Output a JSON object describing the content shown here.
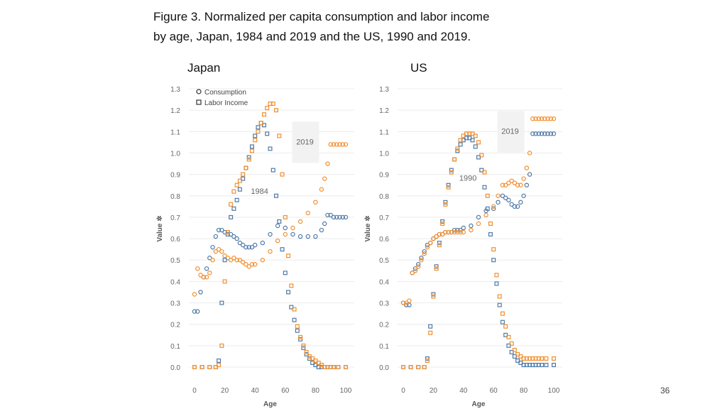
{
  "title_line1": "Figure 3.  Normalized per capita consumption and labor income",
  "title_line2": "by age, Japan, 1984 and 2019 and the US, 1990 and 2019.",
  "page_number": "36",
  "colors": {
    "year_early": "#4e79a7",
    "year_late": "#f28e2b"
  },
  "chart_data": [
    {
      "type": "scatter",
      "panel_title": "Japan",
      "xlabel": "Age",
      "ylabel": "Value",
      "xlim": [
        0,
        100
      ],
      "ylim": [
        0,
        1.3
      ],
      "xticks": [
        "0",
        "20",
        "40",
        "60",
        "80",
        "100"
      ],
      "yticks": [
        "0.0",
        "0.1",
        "0.2",
        "0.3",
        "0.4",
        "0.5",
        "0.6",
        "0.7",
        "0.8",
        "0.9",
        "1.0",
        "1.1",
        "1.2",
        "1.3"
      ],
      "legend": [
        {
          "marker": "circle",
          "label": "Consumption"
        },
        {
          "marker": "square",
          "label": "Labor Income"
        }
      ],
      "annotations": [
        {
          "text": "1984",
          "x": 43,
          "y": 0.81
        },
        {
          "text": "2019",
          "x": 73,
          "y": 1.04
        }
      ],
      "series": [
        {
          "name": "Consumption 1984",
          "year": "1984",
          "marker": "circle",
          "x": [
            0,
            2,
            4,
            6,
            8,
            10,
            12,
            14,
            16,
            18,
            20,
            22,
            24,
            26,
            28,
            30,
            32,
            34,
            36,
            38,
            40,
            45,
            50,
            55,
            60,
            65,
            70,
            75,
            80,
            84,
            86,
            88,
            90,
            92,
            94,
            96,
            98,
            100
          ],
          "y": [
            0.26,
            0.26,
            0.35,
            0.42,
            0.46,
            0.51,
            0.56,
            0.61,
            0.64,
            0.64,
            0.63,
            0.63,
            0.62,
            0.61,
            0.6,
            0.58,
            0.57,
            0.56,
            0.56,
            0.56,
            0.57,
            0.58,
            0.62,
            0.66,
            0.65,
            0.62,
            0.61,
            0.61,
            0.61,
            0.64,
            0.67,
            0.71,
            0.71,
            0.7,
            0.7,
            0.7,
            0.7,
            0.7
          ]
        },
        {
          "name": "Consumption 2019",
          "year": "2019",
          "marker": "circle",
          "x": [
            0,
            2,
            4,
            6,
            8,
            10,
            12,
            14,
            16,
            18,
            20,
            22,
            24,
            26,
            28,
            30,
            32,
            34,
            36,
            38,
            40,
            45,
            50,
            55,
            60,
            65,
            70,
            75,
            80,
            84,
            86,
            88,
            90,
            92,
            94,
            96,
            98,
            100
          ],
          "y": [
            0.34,
            0.46,
            0.43,
            0.42,
            0.42,
            0.44,
            0.5,
            0.54,
            0.55,
            0.54,
            0.52,
            0.51,
            0.5,
            0.51,
            0.5,
            0.5,
            0.49,
            0.48,
            0.47,
            0.48,
            0.48,
            0.5,
            0.54,
            0.59,
            0.62,
            0.65,
            0.68,
            0.72,
            0.77,
            0.83,
            0.88,
            0.95,
            1.04,
            1.04,
            1.04,
            1.04,
            1.04,
            1.04
          ]
        },
        {
          "name": "Labor Income 1984",
          "year": "1984",
          "marker": "square",
          "x": [
            0,
            5,
            10,
            14,
            16,
            18,
            20,
            22,
            24,
            26,
            28,
            30,
            32,
            34,
            36,
            38,
            40,
            42,
            44,
            46,
            48,
            50,
            52,
            54,
            56,
            58,
            60,
            62,
            64,
            66,
            68,
            70,
            72,
            74,
            76,
            78,
            80,
            82,
            84,
            86,
            88,
            90,
            92,
            95,
            100
          ],
          "y": [
            0.0,
            0.0,
            0.0,
            0.0,
            0.03,
            0.3,
            0.5,
            0.62,
            0.7,
            0.74,
            0.78,
            0.83,
            0.88,
            0.93,
            0.98,
            1.03,
            1.08,
            1.12,
            1.14,
            1.13,
            1.09,
            1.02,
            0.92,
            0.8,
            0.68,
            0.55,
            0.44,
            0.35,
            0.28,
            0.22,
            0.17,
            0.13,
            0.09,
            0.06,
            0.04,
            0.02,
            0.01,
            0.0,
            0.0,
            0.0,
            0.0,
            0.0,
            0.0,
            0.0,
            0.0
          ]
        },
        {
          "name": "Labor Income 2019",
          "year": "2019",
          "marker": "square",
          "x": [
            0,
            5,
            10,
            14,
            16,
            18,
            20,
            22,
            24,
            26,
            28,
            30,
            32,
            34,
            36,
            38,
            40,
            42,
            44,
            46,
            48,
            50,
            52,
            54,
            56,
            58,
            60,
            62,
            64,
            66,
            68,
            70,
            72,
            74,
            76,
            78,
            80,
            82,
            84,
            86,
            88,
            90,
            92,
            95,
            100
          ],
          "y": [
            0.0,
            0.0,
            0.0,
            0.0,
            0.01,
            0.1,
            0.4,
            0.63,
            0.76,
            0.82,
            0.85,
            0.87,
            0.9,
            0.93,
            0.97,
            1.01,
            1.06,
            1.1,
            1.14,
            1.18,
            1.21,
            1.23,
            1.23,
            1.2,
            1.08,
            0.9,
            0.7,
            0.52,
            0.38,
            0.27,
            0.19,
            0.14,
            0.1,
            0.07,
            0.05,
            0.04,
            0.03,
            0.02,
            0.01,
            0.0,
            0.0,
            0.0,
            0.0,
            0.0,
            0.0
          ]
        }
      ]
    },
    {
      "type": "scatter",
      "panel_title": "US",
      "xlabel": "Age",
      "ylabel": "Value",
      "xlim": [
        0,
        100
      ],
      "ylim": [
        0,
        1.3
      ],
      "xticks": [
        "0",
        "20",
        "40",
        "60",
        "80",
        "100"
      ],
      "yticks": [
        "0.0",
        "0.1",
        "0.2",
        "0.3",
        "0.4",
        "0.5",
        "0.6",
        "0.7",
        "0.8",
        "0.9",
        "1.0",
        "1.1",
        "1.2",
        "1.3"
      ],
      "annotations": [
        {
          "text": "1990",
          "x": 43,
          "y": 0.87
        },
        {
          "text": "2019",
          "x": 71,
          "y": 1.09
        }
      ],
      "series": [
        {
          "name": "Consumption 1990",
          "year": "1990",
          "marker": "circle",
          "x": [
            0,
            2,
            4,
            6,
            8,
            10,
            12,
            14,
            16,
            18,
            20,
            22,
            24,
            26,
            28,
            30,
            32,
            34,
            36,
            38,
            40,
            45,
            50,
            55,
            60,
            63,
            66,
            68,
            70,
            72,
            74,
            76,
            78,
            80,
            82,
            84,
            86,
            88,
            90,
            92,
            94,
            96,
            98,
            100
          ],
          "y": [
            0.3,
            0.29,
            0.29,
            0.44,
            0.46,
            0.48,
            0.51,
            0.54,
            0.57,
            0.58,
            0.6,
            0.61,
            0.62,
            0.62,
            0.63,
            0.63,
            0.63,
            0.64,
            0.64,
            0.64,
            0.65,
            0.66,
            0.7,
            0.73,
            0.74,
            0.77,
            0.8,
            0.79,
            0.78,
            0.76,
            0.75,
            0.75,
            0.77,
            0.8,
            0.85,
            0.9,
            1.09,
            1.09,
            1.09,
            1.09,
            1.09,
            1.09,
            1.09,
            1.09
          ]
        },
        {
          "name": "Consumption 2019",
          "year": "2019",
          "marker": "circle",
          "x": [
            0,
            2,
            4,
            6,
            8,
            10,
            12,
            14,
            16,
            18,
            20,
            22,
            24,
            26,
            28,
            30,
            32,
            34,
            36,
            38,
            40,
            45,
            50,
            55,
            60,
            63,
            66,
            68,
            70,
            72,
            74,
            76,
            78,
            80,
            82,
            84,
            86,
            88,
            90,
            92,
            94,
            96,
            98,
            100
          ],
          "y": [
            0.3,
            0.3,
            0.31,
            0.44,
            0.45,
            0.47,
            0.5,
            0.53,
            0.56,
            0.58,
            0.6,
            0.61,
            0.62,
            0.62,
            0.63,
            0.63,
            0.63,
            0.63,
            0.63,
            0.63,
            0.63,
            0.64,
            0.67,
            0.71,
            0.75,
            0.8,
            0.85,
            0.85,
            0.86,
            0.87,
            0.86,
            0.85,
            0.85,
            0.88,
            0.93,
            1.0,
            1.16,
            1.16,
            1.16,
            1.16,
            1.16,
            1.16,
            1.16,
            1.16
          ]
        },
        {
          "name": "Labor Income 1990",
          "year": "1990",
          "marker": "square",
          "x": [
            0,
            5,
            10,
            14,
            16,
            18,
            20,
            22,
            24,
            26,
            28,
            30,
            32,
            34,
            36,
            38,
            40,
            42,
            44,
            46,
            48,
            50,
            52,
            54,
            56,
            58,
            60,
            62,
            64,
            66,
            68,
            70,
            72,
            74,
            76,
            78,
            80,
            82,
            84,
            86,
            88,
            90,
            92,
            95,
            100
          ],
          "y": [
            0.0,
            0.0,
            0.0,
            0.0,
            0.04,
            0.19,
            0.34,
            0.47,
            0.58,
            0.68,
            0.77,
            0.85,
            0.92,
            0.97,
            1.01,
            1.04,
            1.06,
            1.07,
            1.07,
            1.06,
            1.03,
            0.98,
            0.92,
            0.84,
            0.74,
            0.62,
            0.5,
            0.39,
            0.29,
            0.21,
            0.15,
            0.1,
            0.07,
            0.05,
            0.03,
            0.02,
            0.01,
            0.01,
            0.01,
            0.01,
            0.01,
            0.01,
            0.01,
            0.01,
            0.01
          ]
        },
        {
          "name": "Labor Income 2019",
          "year": "2019",
          "marker": "square",
          "x": [
            0,
            5,
            10,
            14,
            16,
            18,
            20,
            22,
            24,
            26,
            28,
            30,
            32,
            34,
            36,
            38,
            40,
            42,
            44,
            46,
            48,
            50,
            52,
            54,
            56,
            58,
            60,
            62,
            64,
            66,
            68,
            70,
            72,
            74,
            76,
            78,
            80,
            82,
            84,
            86,
            88,
            90,
            92,
            95,
            100
          ],
          "y": [
            0.0,
            0.0,
            0.0,
            0.0,
            0.03,
            0.16,
            0.33,
            0.46,
            0.57,
            0.67,
            0.76,
            0.84,
            0.91,
            0.97,
            1.02,
            1.06,
            1.08,
            1.09,
            1.09,
            1.09,
            1.08,
            1.05,
            0.99,
            0.91,
            0.8,
            0.67,
            0.55,
            0.43,
            0.33,
            0.25,
            0.19,
            0.14,
            0.11,
            0.08,
            0.06,
            0.05,
            0.04,
            0.04,
            0.04,
            0.04,
            0.04,
            0.04,
            0.04,
            0.04,
            0.04
          ]
        }
      ]
    }
  ]
}
